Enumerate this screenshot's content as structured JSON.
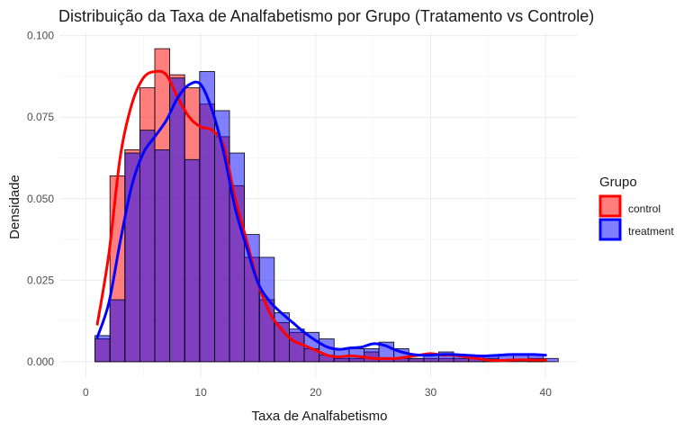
{
  "chart_data": {
    "type": "histogram",
    "title": "Distribuição da Taxa de Analfabetismo por Grupo (Tratamento vs Controle)",
    "xlabel": "Taxa de Analfabetismo",
    "ylabel": "Densidade",
    "xlim": [
      -2.3,
      42.8
    ],
    "ylim": [
      -0.005,
      0.101
    ],
    "x_ticks": [
      0,
      10,
      20,
      30,
      40
    ],
    "x_tick_labels": [
      "0",
      "10",
      "20",
      "30",
      "40"
    ],
    "y_ticks": [
      0,
      0.025,
      0.05,
      0.075,
      0.1
    ],
    "y_tick_labels": [
      "0.000",
      "0.025",
      "0.050",
      "0.075",
      "0.100"
    ],
    "grid": true,
    "legend": {
      "title": "Grupo",
      "position": "right"
    },
    "bin_edges": [
      0.8,
      2.1,
      3.4,
      4.7,
      6.0,
      7.3,
      8.6,
      9.9,
      11.2,
      12.5,
      13.8,
      15.1,
      16.4,
      17.7,
      19.0,
      20.3,
      21.6,
      22.9,
      24.2,
      25.5,
      26.8,
      28.1,
      29.4,
      30.7,
      32.0,
      33.3,
      34.6,
      35.9,
      37.2,
      38.5,
      39.8,
      41.1
    ],
    "series": [
      {
        "name": "control",
        "fill": "#ff0000",
        "line": "#ff0000",
        "densities": [
          0.007,
          0.057,
          0.065,
          0.084,
          0.096,
          0.088,
          0.084,
          0.079,
          0.069,
          0.054,
          0.032,
          0.019,
          0.012,
          0.009,
          0.004,
          0.002,
          0.001,
          0.001,
          0.003,
          0.001,
          0.001,
          0.001,
          0.001,
          0.001,
          0.001,
          0.001,
          0.001,
          0,
          0,
          0.001,
          0
        ],
        "kde_x": [
          1,
          2,
          3,
          4,
          5,
          6,
          7,
          8,
          9,
          10,
          11,
          12,
          13,
          14,
          15,
          16,
          17,
          18,
          19,
          20,
          21,
          22,
          23,
          24,
          25,
          26,
          27,
          28,
          29,
          30,
          31,
          32,
          33,
          34,
          35,
          36,
          37,
          38,
          39,
          40
        ],
        "kde_y": [
          0.0115,
          0.033,
          0.063,
          0.079,
          0.087,
          0.089,
          0.088,
          0.081,
          0.075,
          0.072,
          0.071,
          0.066,
          0.05,
          0.037,
          0.024,
          0.015,
          0.01,
          0.0065,
          0.005,
          0.0035,
          0.002,
          0.0015,
          0.0018,
          0.0015,
          0.001,
          0.001,
          0.001,
          0.0015,
          0.002,
          0.0025,
          0.002,
          0.002,
          0.0015,
          0.001,
          0.0005,
          0.0004,
          0.0005,
          0.0006,
          0.0005,
          0.0005
        ]
      },
      {
        "name": "treatment",
        "fill": "#0000ff",
        "line": "#0000ff",
        "densities": [
          0.008,
          0.019,
          0.064,
          0.071,
          0.065,
          0.087,
          0.062,
          0.089,
          0.077,
          0.064,
          0.039,
          0.032,
          0.015,
          0.01,
          0.009,
          0.007,
          0.004,
          0.004,
          0.004,
          0.006,
          0.004,
          0.001,
          0.002,
          0.003,
          0.002,
          0.002,
          0.002,
          0.002,
          0.002,
          0.002,
          0.001
        ],
        "kde_x": [
          1,
          2,
          3,
          4,
          5,
          6,
          7,
          8,
          9,
          10,
          11,
          12,
          13,
          14,
          15,
          16,
          17,
          18,
          19,
          20,
          21,
          22,
          23,
          24,
          25,
          26,
          27,
          28,
          29,
          30,
          31,
          32,
          33,
          34,
          35,
          36,
          37,
          38,
          39,
          40
        ],
        "kde_y": [
          0.0075,
          0.018,
          0.037,
          0.054,
          0.064,
          0.069,
          0.074,
          0.081,
          0.085,
          0.085,
          0.077,
          0.064,
          0.047,
          0.035,
          0.024,
          0.0185,
          0.015,
          0.012,
          0.009,
          0.0065,
          0.0045,
          0.0038,
          0.0042,
          0.0045,
          0.0055,
          0.005,
          0.0035,
          0.0025,
          0.002,
          0.002,
          0.0022,
          0.0022,
          0.002,
          0.0018,
          0.0018,
          0.002,
          0.0022,
          0.0022,
          0.0022,
          0.002
        ]
      }
    ]
  }
}
